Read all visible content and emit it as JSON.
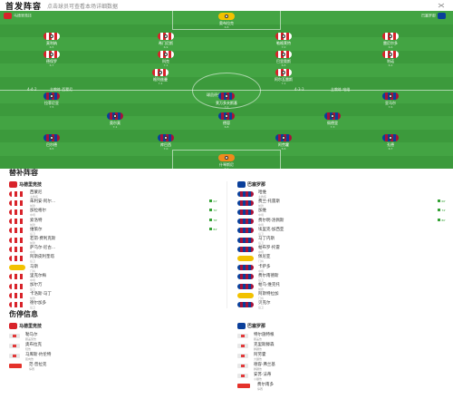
{
  "header": {
    "title": "首发阵容",
    "subtitle": "点击球员可查看本场详细数据"
  },
  "pitch": {
    "home_name": "马德里竞技",
    "home_formation": "4-4-2",
    "home_coach": "西蒙尼",
    "away_name": "巴塞罗那",
    "away_formation": "4-3-3",
    "away_coach": "哈维",
    "center_label": "球员评分",
    "home_info_left": "4-4-2",
    "home_info_right": "主教练 西蒙尼",
    "away_info_left": "4-3-3",
    "away_info_right": "主教练 哈维"
  },
  "players_home": [
    {
      "name": "奥布拉克",
      "rating": "6.8",
      "kind": "gk-a"
    },
    {
      "name": "莫利纳",
      "rating": "6.5",
      "kind": "atm"
    },
    {
      "name": "希门尼斯",
      "rating": "6.9",
      "kind": "atm"
    },
    {
      "name": "勒格莱特",
      "rating": "7.0",
      "kind": "atm"
    },
    {
      "name": "雷尼尔多",
      "rating": "6.6",
      "kind": "atm"
    },
    {
      "name": "德保罗",
      "rating": "6.7",
      "kind": "atm"
    },
    {
      "name": "科克",
      "rating": "7.1",
      "kind": "atm"
    },
    {
      "name": "巴里奥斯",
      "rating": "6.8",
      "kind": "atm"
    },
    {
      "name": "利诺",
      "rating": "6.4",
      "kind": "atm"
    },
    {
      "name": "格列兹曼",
      "rating": "7.4",
      "kind": "atm"
    },
    {
      "name": "阿尔瓦雷斯",
      "rating": "7.2",
      "kind": "atm"
    }
  ],
  "players_away": [
    {
      "name": "什琴斯尼",
      "rating": "6.9",
      "kind": "gk-b"
    },
    {
      "name": "孔德",
      "rating": "6.7",
      "kind": "bar"
    },
    {
      "name": "阿劳霍",
      "rating": "6.6",
      "kind": "bar"
    },
    {
      "name": "库巴西",
      "rating": "7.0",
      "kind": "bar"
    },
    {
      "name": "巴尔德",
      "rating": "6.5",
      "kind": "bar"
    },
    {
      "name": "佩德里",
      "rating": "7.3",
      "kind": "bar"
    },
    {
      "name": "德容",
      "rating": "6.8",
      "kind": "bar"
    },
    {
      "name": "奥尔莫",
      "rating": "7.1",
      "kind": "bar"
    },
    {
      "name": "亚马尔",
      "rating": "7.6",
      "kind": "bar"
    },
    {
      "name": "莱万多夫斯基",
      "rating": "7.0",
      "kind": "bar"
    },
    {
      "name": "拉菲尼亚",
      "rating": "7.5",
      "kind": "bar"
    }
  ],
  "subs": {
    "title": "替补阵容",
    "home_label": "马德里竞技",
    "away_label": "巴塞罗那",
    "home": [
      {
        "name": "西蒙尼",
        "pos": "主教练",
        "time": ""
      },
      {
        "name": "朱利安·阿尔...",
        "pos": "前锋",
        "time": "62'"
      },
      {
        "name": "加拉格尔",
        "pos": "中场",
        "time": "70'"
      },
      {
        "name": "索洛特",
        "pos": "前锋",
        "time": "78'"
      },
      {
        "name": "维策尔",
        "pos": "后卫",
        "time": "84'"
      },
      {
        "name": "若昂·费利克斯",
        "pos": "前锋",
        "time": ""
      },
      {
        "name": "萨乌尔·尼古...",
        "pos": "中场",
        "time": ""
      },
      {
        "name": "阿斯皮利奎塔",
        "pos": "后卫",
        "time": ""
      },
      {
        "name": "马斯",
        "pos": "门将",
        "time": ""
      },
      {
        "name": "里克尔梅",
        "pos": "中场",
        "time": ""
      },
      {
        "name": "加尔万",
        "pos": "后卫",
        "time": ""
      },
      {
        "name": "卡洛斯·马丁",
        "pos": "前锋",
        "time": ""
      },
      {
        "name": "德尔加多",
        "pos": "后卫",
        "time": ""
      }
    ],
    "away": [
      {
        "name": "哈维",
        "pos": "主教练",
        "time": ""
      },
      {
        "name": "费兰·托雷斯",
        "pos": "前锋",
        "time": "66'"
      },
      {
        "name": "加维",
        "pos": "中场",
        "time": "74'"
      },
      {
        "name": "费尔明·洛佩斯",
        "pos": "中场",
        "time": "80'"
      },
      {
        "name": "埃里克·加西亚",
        "pos": "后卫",
        "time": ""
      },
      {
        "name": "马丁内斯",
        "pos": "后卫",
        "time": ""
      },
      {
        "name": "帕布罗·托雷",
        "pos": "中场",
        "time": ""
      },
      {
        "name": "佩尼亚",
        "pos": "门将",
        "time": ""
      },
      {
        "name": "卡萨多",
        "pos": "中场",
        "time": ""
      },
      {
        "name": "费尔南德斯",
        "pos": "后卫",
        "time": ""
      },
      {
        "name": "帕乌·维克托",
        "pos": "前锋",
        "time": ""
      },
      {
        "name": "阿斯特拉加",
        "pos": "门将",
        "time": ""
      },
      {
        "name": "贝克尔",
        "pos": "后卫",
        "time": ""
      }
    ]
  },
  "injuries": {
    "title": "伤停信息",
    "home_label": "马德里竞技",
    "away_label": "巴塞罗那",
    "home": [
      {
        "name": "勒马尔",
        "reason": "膝盖受伤"
      },
      {
        "name": "奥布拉克",
        "reason": "轻伤"
      },
      {
        "name": "马库斯·约伦特",
        "reason": "肌肉伤"
      },
      {
        "name": "范·普拉克",
        "reason": "停赛"
      }
    ],
    "away": [
      {
        "name": "特尔施特根",
        "reason": "膝盖伤"
      },
      {
        "name": "克里斯滕森",
        "reason": "脚踝伤"
      },
      {
        "name": "阿劳霍",
        "reason": "大腿伤"
      },
      {
        "name": "德容·弗兰基",
        "reason": "脚踝伤"
      },
      {
        "name": "安苏·法蒂",
        "reason": "小腿伤"
      },
      {
        "name": "费尔南多",
        "reason": "停赛"
      }
    ]
  },
  "colors": {
    "pitch": "#3c9a3c",
    "pitch_stripe": "#43a443",
    "sub_in": "#35a235"
  }
}
